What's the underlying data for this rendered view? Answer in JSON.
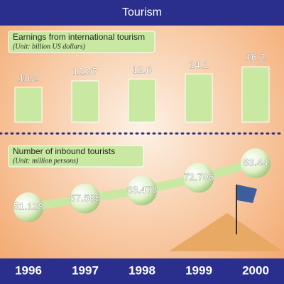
{
  "title": "Tourism",
  "chart_data": [
    {
      "type": "bar",
      "title": "Earnings from international tourism",
      "subtitle": "(Unit: billion US dollars)",
      "categories": [
        "1996",
        "1997",
        "1998",
        "1999",
        "2000"
      ],
      "values": [
        10.2,
        12.07,
        12.6,
        14.1,
        16.2
      ],
      "color": "#c9e8a2"
    },
    {
      "type": "line",
      "title": "Number of inbound tourists",
      "subtitle": "(Unit: million persons)",
      "values": [
        51.128,
        57.588,
        63.478,
        72.796,
        83.44
      ],
      "color": "#c9e8a2"
    }
  ]
}
